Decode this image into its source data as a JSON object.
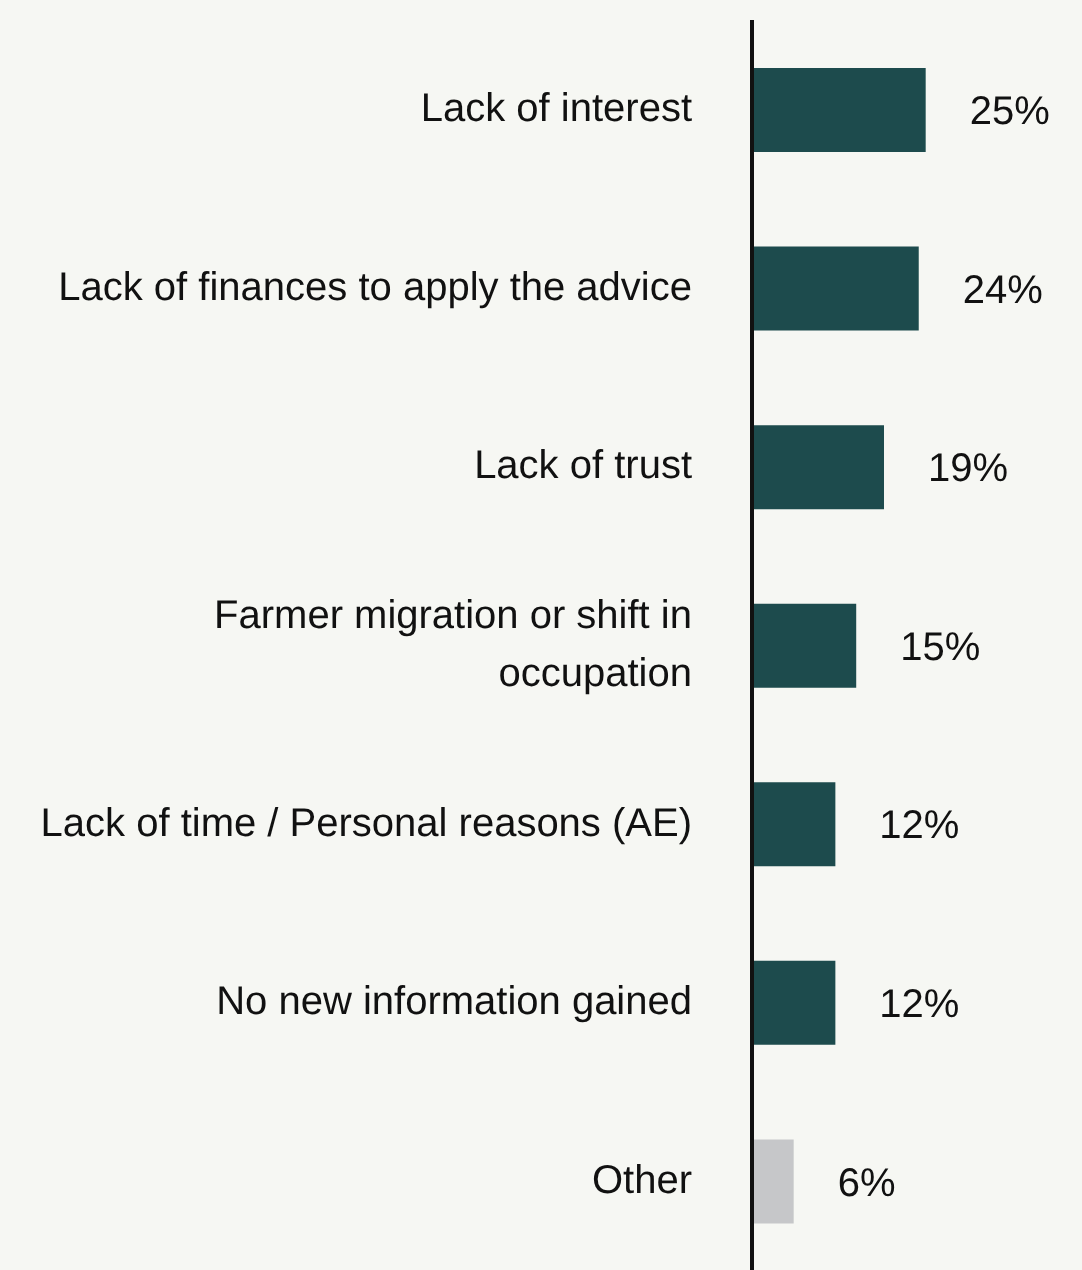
{
  "chart_data": {
    "type": "bar",
    "orientation": "horizontal",
    "categories": [
      "Lack of interest",
      "Lack of finances to apply the advice",
      "Lack of trust",
      "Farmer migration or shift in occupation",
      "Lack of time / Personal reasons (AE)",
      "No new information gained",
      "Other"
    ],
    "values": [
      25,
      24,
      19,
      15,
      12,
      12,
      6
    ],
    "value_labels": [
      "25%",
      "24%",
      "19%",
      "15%",
      "12%",
      "12%",
      "6%"
    ],
    "colors": [
      "#1d4b4d",
      "#1d4b4d",
      "#1d4b4d",
      "#1d4b4d",
      "#1d4b4d",
      "#1d4b4d",
      "#c6c7c9"
    ]
  }
}
